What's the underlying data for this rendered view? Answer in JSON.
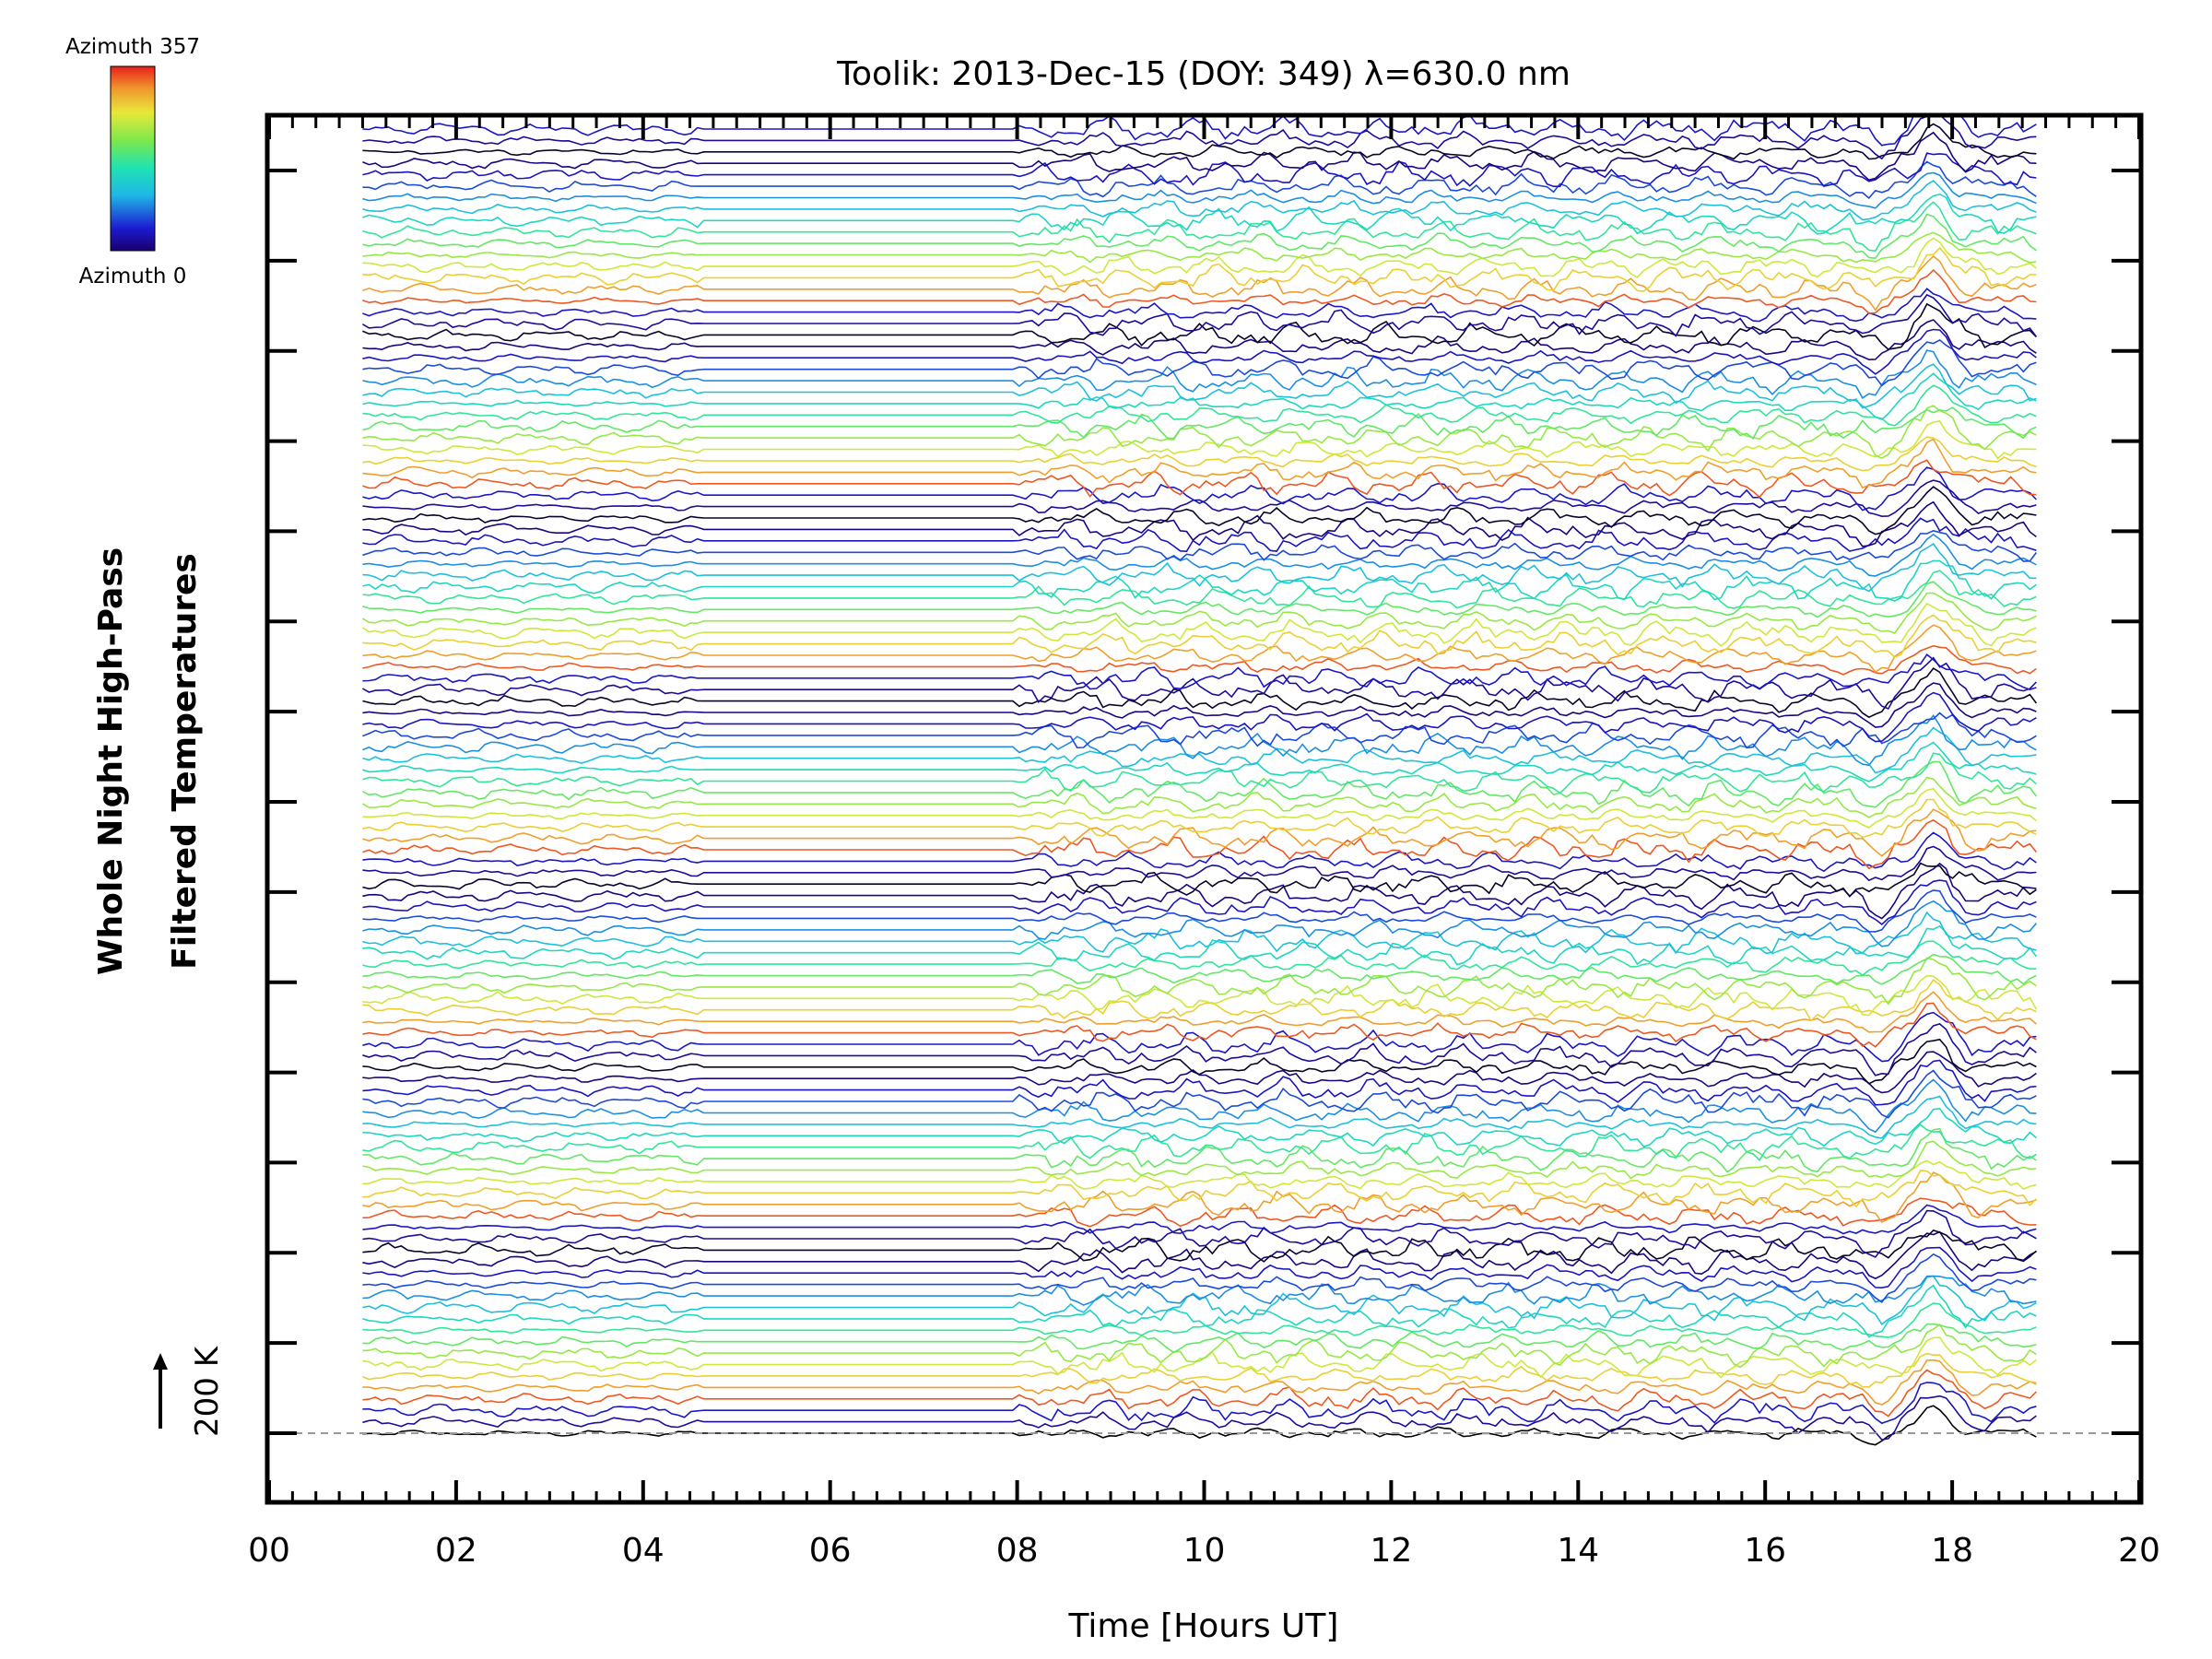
{
  "chart_data": {
    "type": "line",
    "title": "Toolik: 2013-Dec-15 (DOY: 349) λ=630.0 nm",
    "xlabel": "Time [Hours UT]",
    "ylabel_line1": "Whole Night High-Pass",
    "ylabel_line2": "Filtered Temperatures",
    "xlim": [
      0,
      20
    ],
    "x_tick_labels": [
      "00",
      "02",
      "04",
      "06",
      "08",
      "10",
      "12",
      "14",
      "16",
      "18",
      "20"
    ],
    "x_ticks": [
      0,
      2,
      4,
      6,
      8,
      10,
      12,
      14,
      16,
      18,
      20
    ],
    "data_x_range": [
      1.0,
      18.9
    ],
    "gap_interval_hours": [
      4.6,
      8.0
    ],
    "series_count": 115,
    "azimuth_range": [
      0,
      357
    ],
    "colorbar": {
      "label_top": "Azimuth  357",
      "label_bottom": "Azimuth  0",
      "colormap": "rainbow (dark blue → red)"
    },
    "scale_bar_label": "200 K",
    "features": [
      {
        "x_hours": 17.8,
        "description": "large positive temperature pulse in all traces"
      },
      {
        "x_hours": 9.7,
        "description": "wave activity onset after ~08:00 UT"
      }
    ],
    "baseline_style": "dashed gray"
  },
  "colors": {
    "background": "#ffffff",
    "axes": "#000000",
    "baseline": "#999999"
  }
}
